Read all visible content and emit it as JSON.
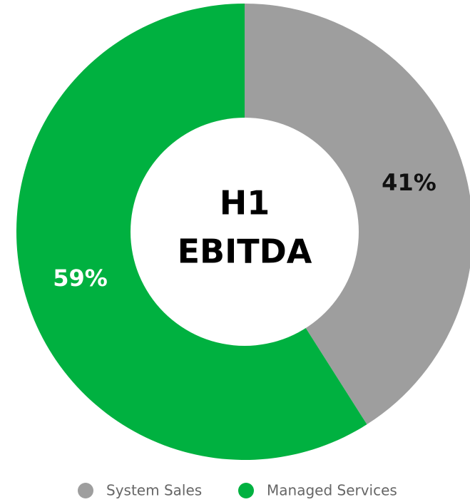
{
  "chart_data": {
    "type": "pie",
    "donut": true,
    "center_label": [
      "H1",
      "EBITDA"
    ],
    "categories": [
      "System Sales",
      "Managed Services"
    ],
    "values": [
      41,
      59
    ],
    "value_labels": [
      "41%",
      "59%"
    ],
    "colors": [
      "#9e9e9e",
      "#00b140"
    ],
    "value_label_colors": [
      "#111111",
      "#ffffff"
    ],
    "start_angle": 0,
    "direction": "clockwise",
    "legend": "bottom"
  }
}
